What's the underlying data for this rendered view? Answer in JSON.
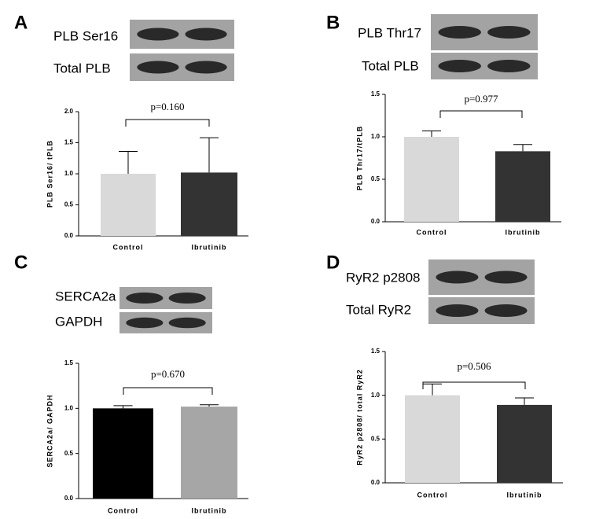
{
  "chart_data": [
    {
      "type": "bar",
      "panel": "A",
      "blot_labels": [
        "PLB Ser16",
        "Total PLB"
      ],
      "y_label": "PLB Ser16/ tPLB",
      "annotation": "p=0.160",
      "categories": [
        "Control",
        "Ibrutinib"
      ],
      "values": [
        1.0,
        1.02
      ],
      "errors": [
        0.36,
        0.56
      ],
      "colors": [
        "#d9d9d9",
        "#333333"
      ],
      "ylim": [
        0,
        2
      ],
      "yticks": [
        {
          "value": 0,
          "label": "0.0"
        },
        {
          "value": 0.5,
          "label": "0.5"
        },
        {
          "value": 1,
          "label": "1.0"
        },
        {
          "value": 1.5,
          "label": "1.5"
        },
        {
          "value": 2,
          "label": "2.0"
        }
      ]
    },
    {
      "type": "bar",
      "panel": "B",
      "blot_labels": [
        "PLB Thr17",
        "Total PLB"
      ],
      "y_label": "PLB Thr17/tPLB",
      "annotation": "p=0.977",
      "categories": [
        "Control",
        "Ibrutinib"
      ],
      "values": [
        1.0,
        0.83
      ],
      "errors": [
        0.07,
        0.08
      ],
      "colors": [
        "#d9d9d9",
        "#333333"
      ],
      "ylim": [
        0,
        1.5
      ],
      "yticks": [
        {
          "value": 0,
          "label": "0.0"
        },
        {
          "value": 0.5,
          "label": "0.5"
        },
        {
          "value": 1,
          "label": "1.0"
        },
        {
          "value": 1.5,
          "label": "1.5"
        }
      ]
    },
    {
      "type": "bar",
      "panel": "C",
      "blot_labels": [
        "SERCA2a",
        "GAPDH"
      ],
      "y_label": "SERCA2a/ GAPDH",
      "annotation": "p=0.670",
      "categories": [
        "Control",
        "Ibrutinib"
      ],
      "values": [
        1.0,
        1.02
      ],
      "errors": [
        0.03,
        0.02
      ],
      "colors": [
        "#000000",
        "#a6a6a6"
      ],
      "ylim": [
        0,
        1.5
      ],
      "yticks": [
        {
          "value": 0,
          "label": "0.0"
        },
        {
          "value": 0.5,
          "label": "0.5"
        },
        {
          "value": 1,
          "label": "1.0"
        },
        {
          "value": 1.5,
          "label": "1.5"
        }
      ]
    },
    {
      "type": "bar",
      "panel": "D",
      "blot_labels": [
        "RyR2 p2808",
        "Total RyR2"
      ],
      "y_label": "RyR2 p2808/ total RyR2",
      "annotation": "p=0.506",
      "categories": [
        "Control",
        "Ibrutinib"
      ],
      "values": [
        1.0,
        0.89
      ],
      "errors": [
        0.13,
        0.08
      ],
      "colors": [
        "#d9d9d9",
        "#333333"
      ],
      "ylim": [
        0,
        1.5
      ],
      "yticks": [
        {
          "value": 0,
          "label": "0.0"
        },
        {
          "value": 0.5,
          "label": "0.5"
        },
        {
          "value": 1,
          "label": "1.0"
        },
        {
          "value": 1.5,
          "label": "1.5"
        }
      ]
    }
  ]
}
